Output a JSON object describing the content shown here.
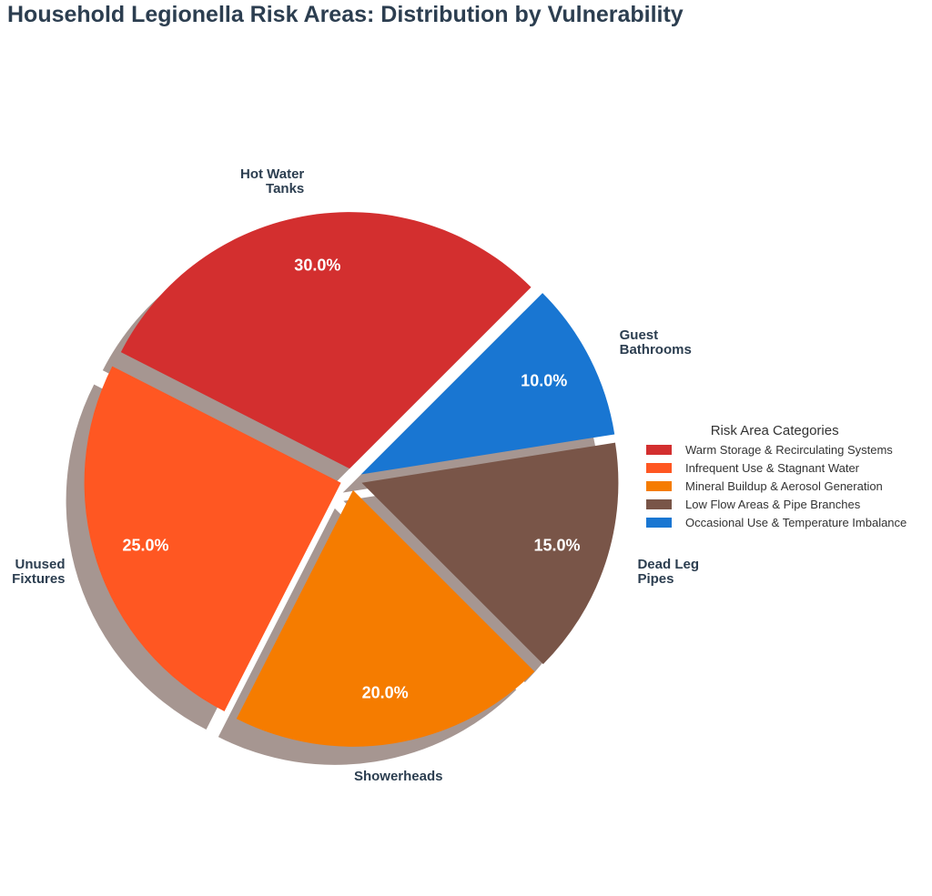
{
  "chart_data": {
    "type": "pie",
    "title": "Household Legionella Risk Areas: Distribution by Vulnerability",
    "categories": [
      "Hot Water\nTanks",
      "Unused\nFixtures",
      "Showerheads",
      "Dead Leg\nPipes",
      "Guest\nBathrooms"
    ],
    "values": [
      30,
      25,
      20,
      15,
      10
    ],
    "value_labels": [
      "30.0%",
      "25.0%",
      "20.0%",
      "15.0%",
      "10.0%"
    ],
    "colors": [
      "#d32f2f",
      "#ff5722",
      "#f57c00",
      "#795548",
      "#1976d2"
    ],
    "legend": {
      "title": "Risk Area Categories",
      "entries": [
        "Warm Storage & Recirculating Systems",
        "Infrequent Use & Stagnant Water",
        "Mineral Buildup & Aerosol Generation",
        "Low Flow Areas & Pipe Branches",
        "Occasional Use & Temperature Imbalance"
      ]
    }
  }
}
